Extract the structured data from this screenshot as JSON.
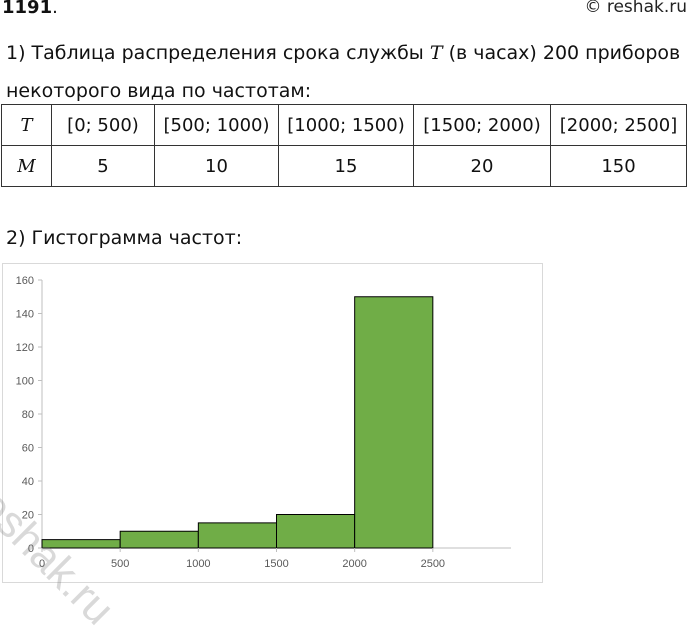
{
  "problem": {
    "number": "1191",
    "dot": "."
  },
  "site": "© reshak.ru",
  "part1": {
    "prefix": "1) Таблица распределения срока службы ",
    "var": "T",
    "suffix": " (в часах) 200 приборов некоторого вида по частотам:"
  },
  "table": {
    "row_header_T": "T",
    "row_header_M": "M",
    "intervals": [
      "[0; 500)",
      "[500; 1000)",
      "[1000; 1500)",
      "[1500; 2000)",
      "[2000; 2500]"
    ],
    "counts": [
      "5",
      "10",
      "15",
      "20",
      "150"
    ]
  },
  "part2": {
    "title": "2) Гистограмма частот:"
  },
  "watermark": "reshak.ru",
  "chart_data": {
    "type": "bar",
    "bins": [
      [
        0,
        500
      ],
      [
        500,
        1000
      ],
      [
        1000,
        1500
      ],
      [
        1500,
        2000
      ],
      [
        2000,
        2500
      ]
    ],
    "values": [
      5,
      10,
      15,
      20,
      150
    ],
    "x_ticks": [
      0,
      500,
      1000,
      1500,
      2000,
      2500
    ],
    "y_ticks": [
      0,
      20,
      40,
      60,
      80,
      100,
      120,
      140,
      160
    ],
    "xlim": [
      0,
      3000
    ],
    "ylim": [
      0,
      160
    ],
    "bar_color": "#70ad47",
    "grid": false,
    "title": "",
    "xlabel": "",
    "ylabel": ""
  }
}
